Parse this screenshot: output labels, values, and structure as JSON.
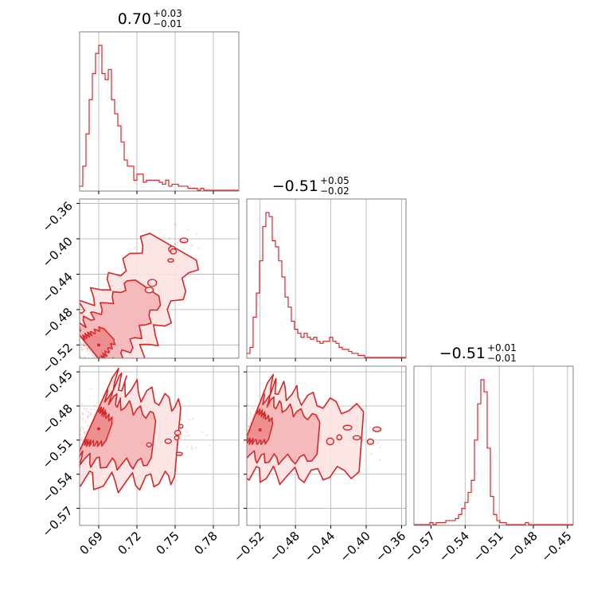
{
  "colors": {
    "primary": "#d62728",
    "fill_mid": "#f4b5b6",
    "fill_light": "#fbe2e2",
    "grid": "#b0b0b0",
    "frame": "#808080"
  },
  "titles": [
    {
      "main": "0.70",
      "upper": "+0.03",
      "lower": "−0.01"
    },
    {
      "main": "−0.51",
      "upper": "+0.05",
      "lower": "−0.02"
    },
    {
      "main": "−0.51",
      "upper": "+0.01",
      "lower": "−0.01"
    }
  ],
  "chart_data": {
    "type": "corner",
    "grid": true,
    "params": [
      {
        "range": [
          0.675,
          0.8
        ],
        "ticks": [
          0.69,
          0.72,
          0.75,
          0.78
        ],
        "tick_labels": [
          "0.69",
          "0.72",
          "0.75",
          "0.78"
        ]
      },
      {
        "range": [
          -0.535,
          -0.355
        ],
        "ticks": [
          -0.52,
          -0.48,
          -0.44,
          -0.4,
          -0.36
        ],
        "tick_labels": [
          "−0.52",
          "−0.48",
          "−0.44",
          "−0.40",
          "−0.36"
        ]
      },
      {
        "range": [
          -0.585,
          -0.445
        ],
        "ticks": [
          -0.57,
          -0.54,
          -0.51,
          -0.48,
          -0.45
        ],
        "tick_labels": [
          "−0.57",
          "−0.54",
          "−0.51",
          "−0.48",
          "−0.45"
        ]
      }
    ],
    "histograms": [
      {
        "x_start": 0.675,
        "bin_width": 0.0025,
        "counts": [
          2,
          12,
          28,
          45,
          58,
          68,
          72,
          58,
          55,
          60,
          45,
          38,
          32,
          24,
          15,
          12,
          12,
          5,
          8,
          8,
          4,
          5,
          5,
          5,
          5,
          4,
          3,
          5,
          2,
          3,
          3,
          2,
          2,
          2,
          1,
          1,
          1,
          0,
          1,
          0,
          0,
          0,
          0,
          0,
          0,
          0,
          0,
          0,
          0,
          0
        ]
      },
      {
        "x_start": -0.535,
        "bin_width": 0.0036,
        "counts": [
          2,
          5,
          20,
          32,
          48,
          65,
          72,
          70,
          58,
          55,
          48,
          40,
          30,
          25,
          18,
          14,
          12,
          10,
          12,
          10,
          9,
          10,
          8,
          7,
          8,
          8,
          10,
          8,
          7,
          5,
          4,
          4,
          3,
          2,
          2,
          1,
          1,
          0,
          0,
          0,
          0,
          0,
          0,
          0,
          0,
          0,
          0,
          0,
          0,
          0
        ]
      },
      {
        "x_start": -0.585,
        "bin_width": 0.0028,
        "counts": [
          0,
          0,
          0,
          0,
          0,
          1,
          0,
          1,
          1,
          1,
          2,
          2,
          2,
          3,
          5,
          8,
          11,
          16,
          22,
          42,
          60,
          72,
          66,
          38,
          14,
          5,
          2,
          1,
          1,
          0,
          0,
          0,
          0,
          0,
          0,
          1,
          0,
          0,
          0,
          0,
          0,
          0,
          0,
          0,
          0,
          0,
          0,
          0,
          0,
          0
        ]
      }
    ],
    "pairs": [
      {
        "x_param": 0,
        "y_param": 1,
        "trend": {
          "x": [
            0.684,
            0.69,
            0.7,
            0.712,
            0.725,
            0.74,
            0.752
          ],
          "y": [
            -0.525,
            -0.518,
            -0.505,
            -0.485,
            -0.462,
            -0.43,
            -0.4
          ]
        },
        "spread_x": 0.008,
        "spread_y": 0.008,
        "center": [
          0.69,
          -0.52
        ]
      },
      {
        "x_param": 0,
        "y_param": 2,
        "trend": {
          "x": [
            0.684,
            0.69,
            0.7,
            0.715,
            0.73,
            0.745,
            0.755
          ],
          "y": [
            -0.497,
            -0.5,
            -0.504,
            -0.507,
            -0.509,
            -0.511,
            -0.512
          ]
        },
        "spread_x": 0.01,
        "spread_y": 0.008,
        "center": [
          0.69,
          -0.5
        ]
      },
      {
        "x_param": 1,
        "y_param": 2,
        "trend": {
          "x": [
            -0.53,
            -0.52,
            -0.505,
            -0.485,
            -0.46,
            -0.43,
            -0.395
          ],
          "y": [
            -0.497,
            -0.5,
            -0.503,
            -0.506,
            -0.508,
            -0.51,
            -0.512
          ]
        },
        "spread_x": 0.012,
        "spread_y": 0.007,
        "center": [
          -0.52,
          -0.501
        ]
      }
    ]
  }
}
